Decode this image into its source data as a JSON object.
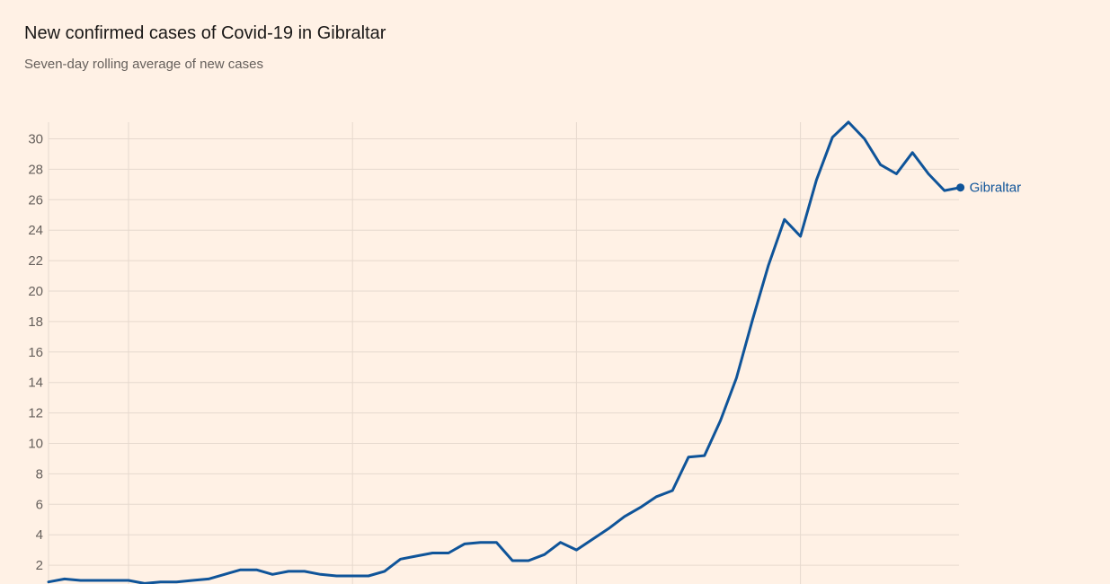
{
  "header": {
    "title": "New confirmed cases of Covid-19 in Gibraltar",
    "subtitle": "Seven-day rolling average of new cases"
  },
  "colors": {
    "background": "#fff1e5",
    "grid": "#e6d9ce",
    "tick_text": "#66605c",
    "series": "#0f5499"
  },
  "chart_data": {
    "type": "line",
    "title": "New confirmed cases of Covid-19 in Gibraltar",
    "subtitle": "Seven-day rolling average of new cases",
    "xlabel": "",
    "ylabel": "",
    "ylim": [
      0,
      31
    ],
    "yticks": [
      2,
      4,
      6,
      8,
      10,
      12,
      14,
      16,
      18,
      20,
      22,
      24,
      26,
      28,
      30
    ],
    "grid": true,
    "x_gridlines_at_day": [
      5,
      19,
      33,
      47
    ],
    "legend": "direct label at end of line",
    "series": [
      {
        "name": "Gibraltar",
        "color": "#0f5499",
        "values": [
          0.9,
          1.1,
          1.0,
          1.0,
          1.0,
          1.0,
          0.8,
          0.9,
          0.9,
          1.0,
          1.1,
          1.4,
          1.7,
          1.7,
          1.4,
          1.6,
          1.6,
          1.4,
          1.3,
          1.3,
          1.3,
          1.6,
          2.4,
          2.6,
          2.8,
          2.8,
          3.4,
          3.5,
          3.5,
          2.3,
          2.3,
          2.7,
          3.5,
          3.0,
          3.7,
          4.4,
          5.2,
          5.8,
          6.5,
          6.9,
          9.1,
          9.2,
          11.5,
          14.3,
          18.1,
          21.7,
          24.7,
          23.6,
          27.3,
          30.1,
          31.1,
          30.0,
          28.3,
          27.7,
          29.1,
          27.7,
          26.6,
          26.8
        ]
      }
    ]
  }
}
